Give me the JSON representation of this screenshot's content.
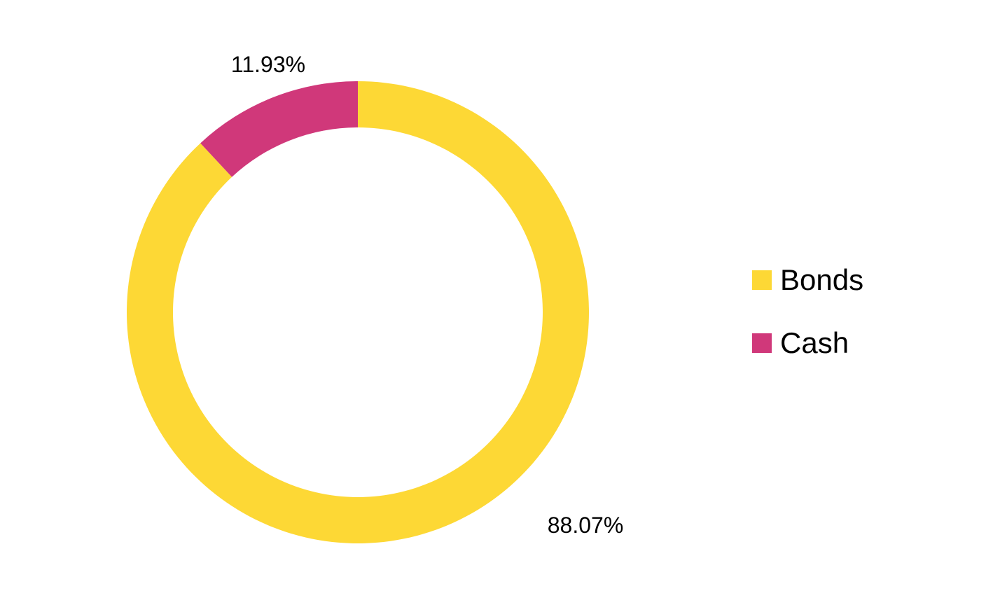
{
  "chart_data": {
    "type": "pie",
    "variant": "donut",
    "categories": [
      "Bonds",
      "Cash"
    ],
    "values": [
      88.07,
      11.93
    ],
    "labels": [
      "88.07%",
      "11.93%"
    ],
    "colors": [
      "#FDD835",
      "#D0387A"
    ],
    "legend_position": "right",
    "title": ""
  }
}
